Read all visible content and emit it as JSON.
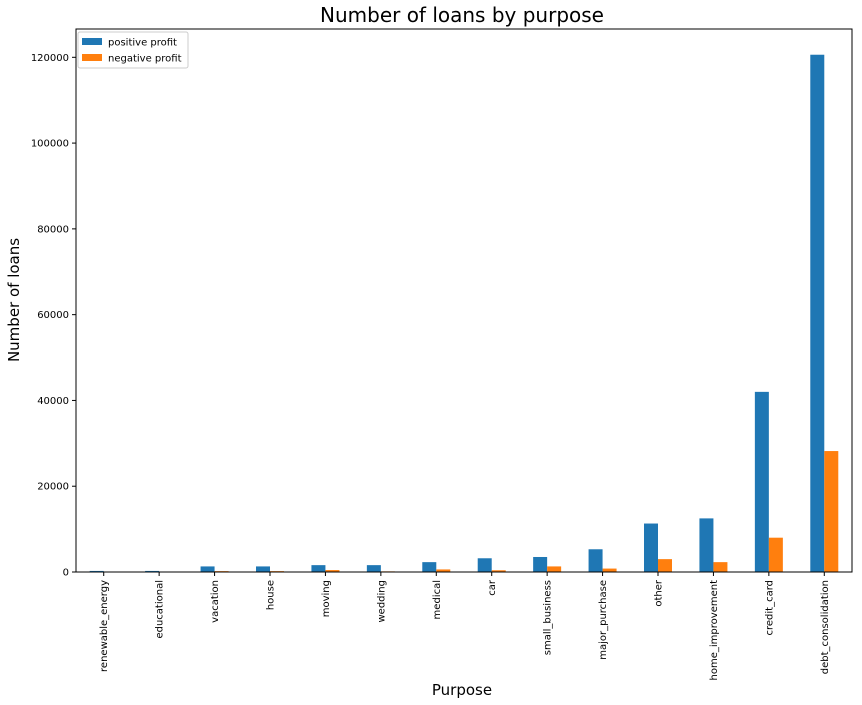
{
  "chart_data": {
    "type": "bar",
    "title": "Number of loans by purpose",
    "xlabel": "Purpose",
    "ylabel": "Number of loans",
    "categories": [
      "renewable_energy",
      "educational",
      "vacation",
      "house",
      "moving",
      "wedding",
      "medical",
      "car",
      "small_business",
      "major_purchase",
      "other",
      "home_improvement",
      "credit_card",
      "debt_consolidation"
    ],
    "series": [
      {
        "name": "positive profit",
        "color": "#1f77b4",
        "values": [
          250,
          250,
          1300,
          1300,
          1600,
          1600,
          2300,
          3200,
          3500,
          5300,
          11300,
          12500,
          42000,
          120600
        ]
      },
      {
        "name": "negative profit",
        "color": "#ff7f0e",
        "values": [
          50,
          30,
          200,
          200,
          450,
          150,
          600,
          400,
          1300,
          800,
          3000,
          2300,
          8000,
          28200
        ]
      }
    ],
    "ylim": [
      0,
      126600
    ],
    "yticks": [
      0,
      20000,
      40000,
      60000,
      80000,
      100000,
      120000
    ],
    "ytick_labels": [
      "0",
      "20000",
      "40000",
      "60000",
      "80000",
      "100000",
      "120000"
    ],
    "legend_position": "top-left",
    "grid": false
  }
}
